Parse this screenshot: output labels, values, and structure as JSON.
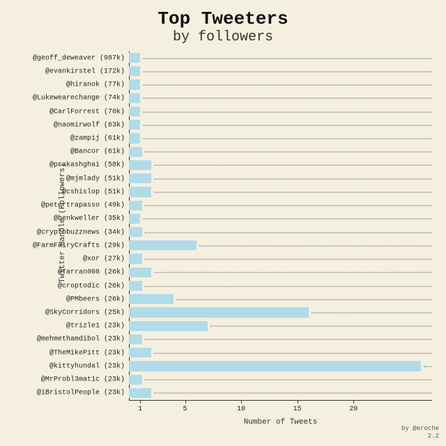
{
  "title": "Top Tweeters",
  "subtitle": "by followers",
  "title_fontsize": 26,
  "subtitle_fontsize": 20,
  "xlabel": "Number of Tweets",
  "ylabel": "Twitter Handle (Followers)",
  "credit_line1": "by @eroche",
  "credit_line2": "2.2",
  "background_color": "#f5efe0",
  "bar_color": "#b0dbe8",
  "grid_color": "#555555",
  "text_color": "#222222",
  "chart": {
    "type": "bar_horizontal",
    "xlim": [
      0,
      27
    ],
    "xticks": [
      1,
      5,
      10,
      15,
      20
    ],
    "bar_height_ratio": 0.72,
    "rows": [
      {
        "label": "@geoff_deweaver (987k)",
        "value": 1.0
      },
      {
        "label": "@evankirstel (172k)",
        "value": 1.0
      },
      {
        "label": "@hiranok (77k)",
        "value": 1.0
      },
      {
        "label": "@Lukewearechange (74k)",
        "value": 1.0
      },
      {
        "label": "@CarlForrest (70k)",
        "value": 1.0
      },
      {
        "label": "@naomirwolf (63k)",
        "value": 1.0
      },
      {
        "label": "@zampij (61k)",
        "value": 1.0
      },
      {
        "label": "@Bancor (61k)",
        "value": 1.2
      },
      {
        "label": "@prakashghai (58k)",
        "value": 2.0
      },
      {
        "label": "@mjmlady (51k)",
        "value": 2.0
      },
      {
        "label": "@cshislop (51k)",
        "value": 2.0
      },
      {
        "label": "@petertrapasso (49k)",
        "value": 1.2
      },
      {
        "label": "@benkweller (35k)",
        "value": 1.0
      },
      {
        "label": "@cryptobuzznews (34k)",
        "value": 1.2
      },
      {
        "label": "@FarmFairyCrafts (29k)",
        "value": 6.0
      },
      {
        "label": "@xor (27k)",
        "value": 1.2
      },
      {
        "label": "@Tarran008 (26k)",
        "value": 2.0
      },
      {
        "label": "@croptodic (26k)",
        "value": 1.2
      },
      {
        "label": "@PMbeers (26k)",
        "value": 4.0
      },
      {
        "label": "@SkyCorridors (25k)",
        "value": 16.0
      },
      {
        "label": "@trizle1 (23k)",
        "value": 7.0
      },
      {
        "label": "@mehmethamdibol (23k)",
        "value": 1.2
      },
      {
        "label": "@TheMikePitt (23k)",
        "value": 2.0
      },
      {
        "label": "@kittyhundal (23k)",
        "value": 26.0
      },
      {
        "label": "@MrProbl3mat1c (23k)",
        "value": 1.2
      },
      {
        "label": "@iBristolPeople (23k)",
        "value": 2.0
      }
    ]
  }
}
